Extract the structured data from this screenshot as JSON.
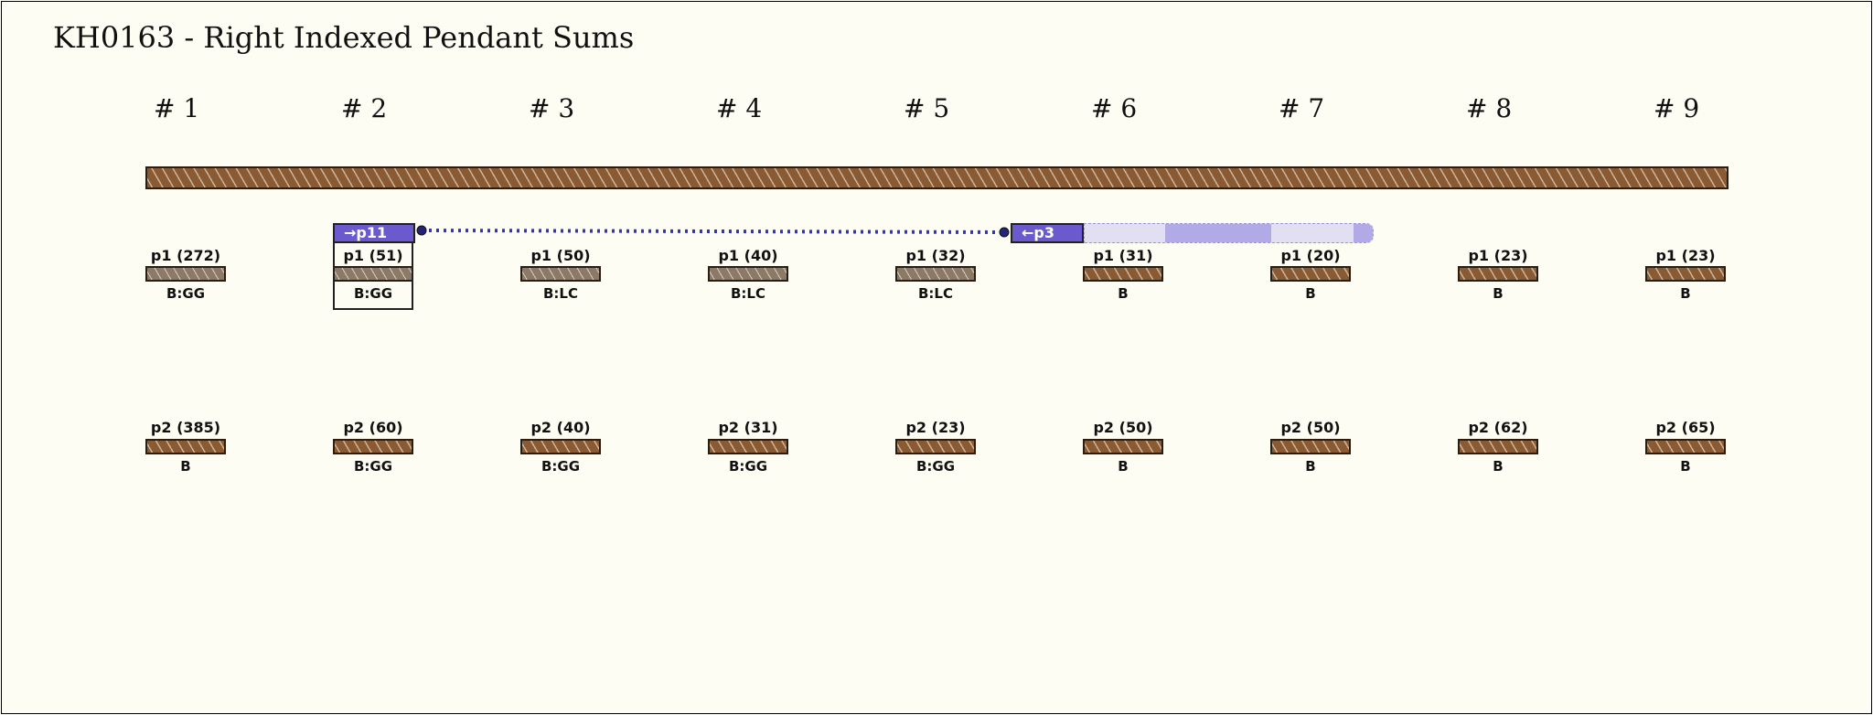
{
  "title": "KH0163 - Right Indexed Pendant Sums",
  "groups": [
    {
      "label": "# 1"
    },
    {
      "label": "# 2"
    },
    {
      "label": "# 3"
    },
    {
      "label": "# 4"
    },
    {
      "label": "# 5"
    },
    {
      "label": "# 6"
    },
    {
      "label": "# 7"
    },
    {
      "label": "# 8"
    },
    {
      "label": "# 9"
    }
  ],
  "row1": [
    {
      "label": "p1 (272)",
      "color": "B:GG",
      "style": "light"
    },
    {
      "label": "p1 (51)",
      "color": "B:GG",
      "style": "light"
    },
    {
      "label": "p1 (50)",
      "color": "B:LC",
      "style": "light"
    },
    {
      "label": "p1 (40)",
      "color": "B:LC",
      "style": "light"
    },
    {
      "label": "p1 (32)",
      "color": "B:LC",
      "style": "light"
    },
    {
      "label": "p1 (31)",
      "color": "B",
      "style": "brown"
    },
    {
      "label": "p1 (20)",
      "color": "B",
      "style": "brown"
    },
    {
      "label": "p1 (23)",
      "color": "B",
      "style": "brown"
    },
    {
      "label": "p1 (23)",
      "color": "B",
      "style": "brown"
    }
  ],
  "row2": [
    {
      "label": "p2 (385)",
      "color": "B",
      "style": "brown"
    },
    {
      "label": "p2 (60)",
      "color": "B:GG",
      "style": "brown"
    },
    {
      "label": "p2 (40)",
      "color": "B:GG",
      "style": "brown"
    },
    {
      "label": "p2 (31)",
      "color": "B:GG",
      "style": "brown"
    },
    {
      "label": "p2 (23)",
      "color": "B:GG",
      "style": "brown"
    },
    {
      "label": "p2 (50)",
      "color": "B",
      "style": "brown"
    },
    {
      "label": "p2 (50)",
      "color": "B",
      "style": "brown"
    },
    {
      "label": "p2 (62)",
      "color": "B",
      "style": "brown"
    },
    {
      "label": "p2 (65)",
      "color": "B",
      "style": "brown"
    }
  ],
  "link": {
    "start_tag": "→p11",
    "end_tag": "←p3",
    "line_color": "#3333cc",
    "tag_color": "#6a5acd"
  },
  "colors": {
    "cord_brown": "#8a5a33",
    "background": "#fefdf4"
  }
}
